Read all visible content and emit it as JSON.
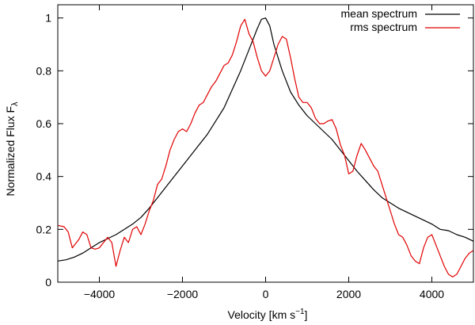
{
  "chart_data": {
    "type": "line",
    "title": "",
    "xlabel": "Velocity [km s",
    "xlabel_sup": "−1",
    "xlabel_end": "]",
    "ylabel": "Normalized Flux F",
    "ylabel_sub": "λ",
    "xlim": [
      -5000,
      5000
    ],
    "ylim": [
      0,
      1.05
    ],
    "x_ticks": [
      -4000,
      -2000,
      0,
      2000,
      4000
    ],
    "x_tick_labels": [
      "−4000",
      "−2000",
      "0",
      "2000",
      "4000"
    ],
    "y_ticks": [
      0,
      0.2,
      0.4,
      0.6,
      0.8,
      1
    ],
    "y_tick_labels": [
      "0",
      "0.2",
      "0.4",
      "0.6",
      "0.8",
      "1"
    ],
    "legend_position": "top-right",
    "series": [
      {
        "name": "mean spectrum",
        "color": "#000000",
        "x": [
          -5000,
          -4800,
          -4600,
          -4400,
          -4200,
          -4000,
          -3800,
          -3600,
          -3400,
          -3200,
          -3000,
          -2800,
          -2600,
          -2400,
          -2200,
          -2000,
          -1800,
          -1600,
          -1400,
          -1200,
          -1000,
          -800,
          -600,
          -400,
          -200,
          -100,
          0,
          100,
          200,
          400,
          600,
          800,
          1000,
          1200,
          1400,
          1600,
          1800,
          2000,
          2200,
          2400,
          2600,
          2800,
          3000,
          3200,
          3400,
          3600,
          3800,
          4000,
          4200,
          4400,
          4600,
          4800,
          5000
        ],
        "values": [
          0.08,
          0.085,
          0.095,
          0.11,
          0.13,
          0.15,
          0.165,
          0.18,
          0.2,
          0.22,
          0.245,
          0.28,
          0.32,
          0.36,
          0.4,
          0.44,
          0.48,
          0.52,
          0.56,
          0.61,
          0.66,
          0.73,
          0.8,
          0.88,
          0.96,
          0.995,
          1.0,
          0.97,
          0.9,
          0.8,
          0.72,
          0.67,
          0.63,
          0.6,
          0.57,
          0.54,
          0.5,
          0.46,
          0.42,
          0.385,
          0.35,
          0.32,
          0.3,
          0.28,
          0.265,
          0.25,
          0.235,
          0.22,
          0.2,
          0.195,
          0.18,
          0.17,
          0.155
        ]
      },
      {
        "name": "rms spectrum",
        "color": "#e00000",
        "x": [
          -5000,
          -4850,
          -4750,
          -4650,
          -4500,
          -4400,
          -4300,
          -4200,
          -4100,
          -4000,
          -3900,
          -3800,
          -3700,
          -3600,
          -3500,
          -3400,
          -3300,
          -3200,
          -3100,
          -3000,
          -2900,
          -2800,
          -2700,
          -2600,
          -2500,
          -2400,
          -2300,
          -2200,
          -2100,
          -2000,
          -1900,
          -1800,
          -1700,
          -1600,
          -1500,
          -1400,
          -1300,
          -1200,
          -1100,
          -1000,
          -900,
          -800,
          -700,
          -600,
          -500,
          -400,
          -300,
          -200,
          -100,
          0,
          100,
          200,
          300,
          400,
          500,
          600,
          700,
          800,
          900,
          1000,
          1100,
          1200,
          1300,
          1400,
          1500,
          1600,
          1700,
          1800,
          1900,
          2000,
          2100,
          2200,
          2300,
          2400,
          2500,
          2600,
          2700,
          2800,
          2900,
          3000,
          3100,
          3200,
          3300,
          3400,
          3500,
          3600,
          3700,
          3800,
          3900,
          4000,
          4100,
          4200,
          4300,
          4400,
          4500,
          4600,
          4700,
          4800,
          4900,
          5000
        ],
        "values": [
          0.215,
          0.21,
          0.19,
          0.13,
          0.16,
          0.19,
          0.18,
          0.13,
          0.125,
          0.13,
          0.15,
          0.17,
          0.15,
          0.06,
          0.12,
          0.17,
          0.15,
          0.2,
          0.21,
          0.18,
          0.22,
          0.27,
          0.31,
          0.37,
          0.39,
          0.44,
          0.5,
          0.54,
          0.57,
          0.58,
          0.57,
          0.6,
          0.64,
          0.67,
          0.68,
          0.71,
          0.74,
          0.76,
          0.79,
          0.82,
          0.83,
          0.86,
          0.91,
          0.97,
          0.995,
          0.94,
          0.91,
          0.85,
          0.8,
          0.78,
          0.8,
          0.85,
          0.9,
          0.93,
          0.92,
          0.85,
          0.77,
          0.7,
          0.68,
          0.68,
          0.66,
          0.62,
          0.6,
          0.6,
          0.61,
          0.615,
          0.58,
          0.52,
          0.48,
          0.41,
          0.42,
          0.48,
          0.525,
          0.5,
          0.47,
          0.44,
          0.42,
          0.37,
          0.32,
          0.27,
          0.22,
          0.18,
          0.17,
          0.14,
          0.1,
          0.08,
          0.07,
          0.13,
          0.17,
          0.18,
          0.14,
          0.1,
          0.06,
          0.03,
          0.02,
          0.03,
          0.06,
          0.09,
          0.11,
          0.12
        ]
      }
    ]
  }
}
